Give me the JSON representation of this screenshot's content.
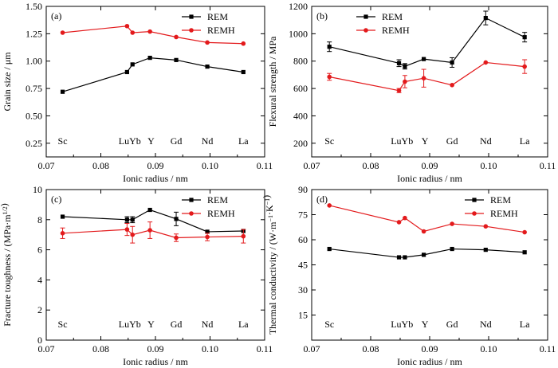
{
  "colors": {
    "REM": "#000000",
    "REMH": "#e31a1c"
  },
  "chart_data": [
    {
      "id": "a",
      "type": "line",
      "panel_label": "(a)",
      "xlabel": "Ionic radius / nm",
      "ylabel": "Grain size / μm",
      "xlim": [
        0.07,
        0.11
      ],
      "ylim": [
        0.125,
        1.5
      ],
      "xticks": [
        "0.07",
        "0.08",
        "0.09",
        "0.10",
        "0.11"
      ],
      "yticks": [
        "0.25",
        "0.50",
        "0.75",
        "1.00",
        "1.25",
        "1.50"
      ],
      "legend": [
        "REM",
        "REMH"
      ],
      "legend_position": "top-right",
      "element_labels": [
        {
          "text": "Sc",
          "x": 0.073
        },
        {
          "text": "LuYb",
          "x": 0.0853
        },
        {
          "text": "Y",
          "x": 0.0892
        },
        {
          "text": "Gd",
          "x": 0.0938
        },
        {
          "text": "Nd",
          "x": 0.0995
        },
        {
          "text": "La",
          "x": 0.1061
        }
      ],
      "series": [
        {
          "name": "REM",
          "x": [
            0.073,
            0.0848,
            0.0858,
            0.089,
            0.0938,
            0.0995,
            0.1061
          ],
          "y": [
            0.72,
            0.9,
            0.97,
            1.03,
            1.01,
            0.95,
            0.9
          ],
          "err": [
            0,
            0,
            0,
            0,
            0,
            0,
            0
          ]
        },
        {
          "name": "REMH",
          "x": [
            0.073,
            0.0848,
            0.0858,
            0.089,
            0.0938,
            0.0995,
            0.1061
          ],
          "y": [
            1.26,
            1.32,
            1.26,
            1.27,
            1.22,
            1.17,
            1.16
          ],
          "err": [
            0,
            0,
            0,
            0,
            0,
            0,
            0
          ]
        }
      ]
    },
    {
      "id": "b",
      "type": "line",
      "panel_label": "(b)",
      "xlabel": "Ionic radius / nm",
      "ylabel": "Flexural strength / MPa",
      "xlim": [
        0.07,
        0.11
      ],
      "ylim": [
        100,
        1200
      ],
      "xticks": [
        "0.07",
        "0.08",
        "0.09",
        "0.10",
        "0.11"
      ],
      "yticks": [
        "200",
        "400",
        "600",
        "800",
        "1000",
        "1200"
      ],
      "legend": [
        "REM",
        "REMH"
      ],
      "legend_position": "top-left",
      "element_labels": [
        {
          "text": "Sc",
          "x": 0.073
        },
        {
          "text": "LuYb",
          "x": 0.0853
        },
        {
          "text": "Y",
          "x": 0.0892
        },
        {
          "text": "Gd",
          "x": 0.0938
        },
        {
          "text": "Nd",
          "x": 0.0995
        },
        {
          "text": "La",
          "x": 0.1061
        }
      ],
      "series": [
        {
          "name": "REM",
          "x": [
            0.073,
            0.0848,
            0.0858,
            0.089,
            0.0938,
            0.0995,
            0.1061
          ],
          "y": [
            905,
            785,
            762,
            815,
            790,
            1115,
            975
          ],
          "err": [
            35,
            25,
            20,
            0,
            35,
            50,
            35
          ]
        },
        {
          "name": "REMH",
          "x": [
            0.073,
            0.0848,
            0.0858,
            0.089,
            0.0938,
            0.0995,
            0.1061
          ],
          "y": [
            685,
            585,
            650,
            675,
            625,
            790,
            760
          ],
          "err": [
            25,
            15,
            45,
            65,
            0,
            0,
            50
          ]
        }
      ]
    },
    {
      "id": "c",
      "type": "line",
      "panel_label": "(c)",
      "xlabel": "Ionic radius / nm",
      "ylabel": "Fracture toughness / (MPa·m1/2)",
      "xlim": [
        0.07,
        0.11
      ],
      "ylim": [
        0,
        10
      ],
      "xticks": [
        "0.07",
        "0.08",
        "0.09",
        "0.10",
        "0.11"
      ],
      "yticks": [
        "0",
        "2",
        "4",
        "6",
        "8",
        "10"
      ],
      "legend": [
        "REM",
        "REMH"
      ],
      "legend_position": "top-right",
      "element_labels": [
        {
          "text": "Sc",
          "x": 0.073
        },
        {
          "text": "LuYb",
          "x": 0.0853
        },
        {
          "text": "Y",
          "x": 0.0892
        },
        {
          "text": "Gd",
          "x": 0.0938
        },
        {
          "text": "Nd",
          "x": 0.0995
        },
        {
          "text": "La",
          "x": 0.1061
        }
      ],
      "series": [
        {
          "name": "REM",
          "x": [
            0.073,
            0.0848,
            0.0858,
            0.089,
            0.0938,
            0.0995,
            0.1061
          ],
          "y": [
            8.2,
            8.0,
            8.0,
            8.65,
            8.05,
            7.2,
            7.25
          ],
          "err": [
            0,
            0.2,
            0.2,
            0,
            0.45,
            0,
            0
          ]
        },
        {
          "name": "REMH",
          "x": [
            0.073,
            0.0848,
            0.0858,
            0.089,
            0.0938,
            0.0995,
            0.1061
          ],
          "y": [
            7.1,
            7.35,
            7.0,
            7.3,
            6.8,
            6.85,
            6.9
          ],
          "err": [
            0.35,
            0.4,
            0.55,
            0.55,
            0.25,
            0.25,
            0.45
          ]
        }
      ]
    },
    {
      "id": "d",
      "type": "line",
      "panel_label": "(d)",
      "xlabel": "Ionic radius / nm",
      "ylabel": "Thermal conductivity / (W·m−1·K−1)",
      "xlim": [
        0.07,
        0.11
      ],
      "ylim": [
        0,
        90
      ],
      "xticks": [
        "0.07",
        "0.08",
        "0.09",
        "0.10",
        "0.11"
      ],
      "yticks": [
        "15",
        "30",
        "45",
        "60",
        "75",
        "90"
      ],
      "legend": [
        "REM",
        "REMH"
      ],
      "legend_position": "top-right",
      "element_labels": [
        {
          "text": "Sc",
          "x": 0.073
        },
        {
          "text": "LuYb",
          "x": 0.0853
        },
        {
          "text": "Y",
          "x": 0.0892
        },
        {
          "text": "Gd",
          "x": 0.0938
        },
        {
          "text": "Nd",
          "x": 0.0995
        },
        {
          "text": "La",
          "x": 0.1061
        }
      ],
      "series": [
        {
          "name": "REM",
          "x": [
            0.073,
            0.0848,
            0.0858,
            0.089,
            0.0938,
            0.0995,
            0.1061
          ],
          "y": [
            54.5,
            49.5,
            49.5,
            51.0,
            54.5,
            54.0,
            52.5
          ],
          "err": [
            0,
            0,
            0,
            0,
            0,
            0,
            0
          ]
        },
        {
          "name": "REMH",
          "x": [
            0.073,
            0.0848,
            0.0858,
            0.089,
            0.0938,
            0.0995,
            0.1061
          ],
          "y": [
            80.5,
            70.5,
            73.0,
            65.0,
            69.5,
            68.0,
            64.5
          ],
          "err": [
            0,
            0,
            0,
            0,
            0,
            0,
            0
          ]
        }
      ]
    }
  ]
}
